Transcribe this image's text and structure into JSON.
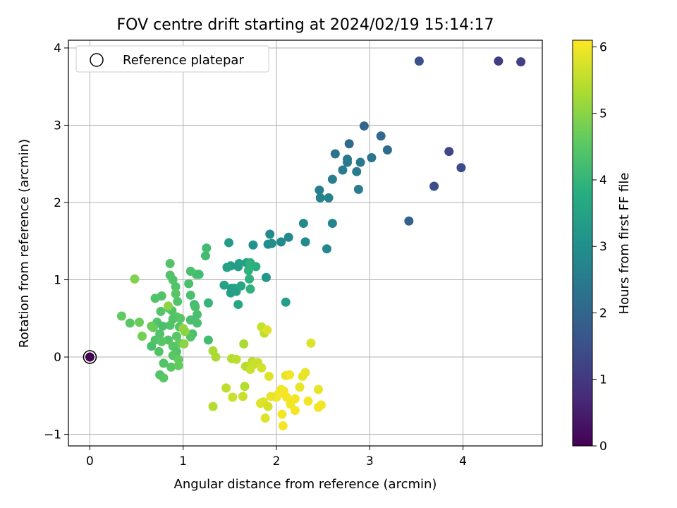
{
  "chart_data": {
    "type": "scatter",
    "title": "FOV centre drift starting at 2024/02/19 15:14:17",
    "xlabel": "Angular distance from reference (arcmin)",
    "ylabel": "Rotation from reference (arcmin)",
    "xlim": [
      -0.23,
      4.85
    ],
    "ylim": [
      -1.15,
      4.1
    ],
    "xticks": [
      0,
      1,
      2,
      3,
      4
    ],
    "yticks": [
      -1,
      0,
      1,
      2,
      3,
      4
    ],
    "grid": true,
    "legend": {
      "position": "top-left",
      "entries": [
        "Reference platepar"
      ]
    },
    "reference_point": {
      "x": 0,
      "y": 0,
      "hours": 0
    },
    "colorbar": {
      "label": "Hours from first FF file",
      "range": [
        0,
        6.1
      ],
      "ticks": [
        0,
        1,
        2,
        3,
        4,
        5,
        6
      ],
      "colormap": "viridis"
    },
    "points": [
      {
        "x": 4.38,
        "y": 3.83,
        "h": 1.1
      },
      {
        "x": 4.62,
        "y": 3.82,
        "h": 1.15
      },
      {
        "x": 3.53,
        "y": 3.83,
        "h": 1.5
      },
      {
        "x": 3.85,
        "y": 2.66,
        "h": 1.3
      },
      {
        "x": 3.98,
        "y": 2.45,
        "h": 1.4
      },
      {
        "x": 3.69,
        "y": 2.21,
        "h": 1.45
      },
      {
        "x": 3.42,
        "y": 1.76,
        "h": 1.9
      },
      {
        "x": 2.94,
        "y": 2.99,
        "h": 2.0
      },
      {
        "x": 3.12,
        "y": 2.86,
        "h": 2.05
      },
      {
        "x": 2.78,
        "y": 2.76,
        "h": 2.1
      },
      {
        "x": 3.19,
        "y": 2.68,
        "h": 2.15
      },
      {
        "x": 2.63,
        "y": 2.63,
        "h": 2.3
      },
      {
        "x": 3.02,
        "y": 2.58,
        "h": 2.35
      },
      {
        "x": 2.76,
        "y": 2.56,
        "h": 2.4
      },
      {
        "x": 2.76,
        "y": 2.52,
        "h": 2.45
      },
      {
        "x": 2.9,
        "y": 2.52,
        "h": 2.4
      },
      {
        "x": 2.71,
        "y": 2.42,
        "h": 2.5
      },
      {
        "x": 2.86,
        "y": 2.4,
        "h": 2.5
      },
      {
        "x": 2.6,
        "y": 2.3,
        "h": 2.6
      },
      {
        "x": 2.88,
        "y": 2.17,
        "h": 2.5
      },
      {
        "x": 2.46,
        "y": 2.16,
        "h": 2.6
      },
      {
        "x": 2.47,
        "y": 2.06,
        "h": 2.65
      },
      {
        "x": 2.56,
        "y": 2.06,
        "h": 2.7
      },
      {
        "x": 2.29,
        "y": 1.73,
        "h": 2.85
      },
      {
        "x": 2.6,
        "y": 1.73,
        "h": 2.75
      },
      {
        "x": 1.93,
        "y": 1.59,
        "h": 2.9
      },
      {
        "x": 2.13,
        "y": 1.55,
        "h": 2.85
      },
      {
        "x": 1.91,
        "y": 1.46,
        "h": 2.95
      },
      {
        "x": 1.95,
        "y": 1.47,
        "h": 3.0
      },
      {
        "x": 2.05,
        "y": 1.49,
        "h": 2.9
      },
      {
        "x": 2.31,
        "y": 1.49,
        "h": 2.9
      },
      {
        "x": 2.54,
        "y": 1.4,
        "h": 2.8
      },
      {
        "x": 1.49,
        "y": 1.48,
        "h": 3.3
      },
      {
        "x": 1.75,
        "y": 1.45,
        "h": 3.1
      },
      {
        "x": 1.51,
        "y": 1.18,
        "h": 3.3
      },
      {
        "x": 1.59,
        "y": 1.17,
        "h": 3.3
      },
      {
        "x": 1.6,
        "y": 1.21,
        "h": 3.4
      },
      {
        "x": 1.47,
        "y": 1.16,
        "h": 3.5
      },
      {
        "x": 1.68,
        "y": 1.22,
        "h": 3.5
      },
      {
        "x": 1.89,
        "y": 1.03,
        "h": 3.2
      },
      {
        "x": 1.44,
        "y": 0.93,
        "h": 3.5
      },
      {
        "x": 1.52,
        "y": 0.89,
        "h": 3.4
      },
      {
        "x": 1.55,
        "y": 0.89,
        "h": 3.5
      },
      {
        "x": 1.51,
        "y": 0.83,
        "h": 3.4
      },
      {
        "x": 1.57,
        "y": 0.85,
        "h": 3.5
      },
      {
        "x": 1.62,
        "y": 0.92,
        "h": 3.6
      },
      {
        "x": 1.59,
        "y": 0.68,
        "h": 3.6
      },
      {
        "x": 2.1,
        "y": 0.71,
        "h": 3.4
      },
      {
        "x": 1.7,
        "y": 1.12,
        "h": 3.9
      },
      {
        "x": 1.72,
        "y": 1.22,
        "h": 3.9
      },
      {
        "x": 1.71,
        "y": 1.01,
        "h": 3.9
      },
      {
        "x": 1.72,
        "y": 0.88,
        "h": 3.9
      },
      {
        "x": 1.78,
        "y": 1.17,
        "h": 3.8
      },
      {
        "x": 1.25,
        "y": 1.41,
        "h": 4.2
      },
      {
        "x": 1.24,
        "y": 1.31,
        "h": 4.2
      },
      {
        "x": 1.08,
        "y": 1.11,
        "h": 4.3
      },
      {
        "x": 1.14,
        "y": 1.07,
        "h": 4.3
      },
      {
        "x": 1.17,
        "y": 1.07,
        "h": 4.2
      },
      {
        "x": 0.86,
        "y": 1.21,
        "h": 4.4
      },
      {
        "x": 0.86,
        "y": 1.06,
        "h": 4.4
      },
      {
        "x": 0.89,
        "y": 1.0,
        "h": 4.4
      },
      {
        "x": 1.06,
        "y": 0.95,
        "h": 4.3
      },
      {
        "x": 0.92,
        "y": 0.91,
        "h": 4.4
      },
      {
        "x": 0.92,
        "y": 0.82,
        "h": 4.5
      },
      {
        "x": 1.08,
        "y": 0.8,
        "h": 4.3
      },
      {
        "x": 0.77,
        "y": 0.79,
        "h": 4.4
      },
      {
        "x": 0.7,
        "y": 0.76,
        "h": 4.4
      },
      {
        "x": 0.94,
        "y": 0.72,
        "h": 4.4
      },
      {
        "x": 1.12,
        "y": 0.68,
        "h": 4.2
      },
      {
        "x": 1.13,
        "y": 0.65,
        "h": 4.3
      },
      {
        "x": 1.27,
        "y": 0.7,
        "h": 4.0
      },
      {
        "x": 0.85,
        "y": 0.63,
        "h": 4.3
      },
      {
        "x": 0.88,
        "y": 0.6,
        "h": 4.4
      },
      {
        "x": 0.76,
        "y": 0.59,
        "h": 4.4
      },
      {
        "x": 1.15,
        "y": 0.55,
        "h": 4.3
      },
      {
        "x": 0.93,
        "y": 0.52,
        "h": 4.5
      },
      {
        "x": 0.97,
        "y": 0.5,
        "h": 4.5
      },
      {
        "x": 0.89,
        "y": 0.49,
        "h": 4.4
      },
      {
        "x": 1.08,
        "y": 0.48,
        "h": 4.3
      },
      {
        "x": 1.15,
        "y": 0.44,
        "h": 4.3
      },
      {
        "x": 0.72,
        "y": 0.45,
        "h": 4.4
      },
      {
        "x": 0.86,
        "y": 0.41,
        "h": 4.4
      },
      {
        "x": 0.96,
        "y": 0.39,
        "h": 4.4
      },
      {
        "x": 0.78,
        "y": 0.4,
        "h": 4.3
      },
      {
        "x": 0.68,
        "y": 0.38,
        "h": 4.6
      },
      {
        "x": 0.66,
        "y": 0.4,
        "h": 4.7
      },
      {
        "x": 0.75,
        "y": 0.3,
        "h": 4.4
      },
      {
        "x": 1.1,
        "y": 0.3,
        "h": 4.3
      },
      {
        "x": 1.08,
        "y": 0.26,
        "h": 4.4
      },
      {
        "x": 0.93,
        "y": 0.27,
        "h": 4.5
      },
      {
        "x": 0.84,
        "y": 0.22,
        "h": 4.4
      },
      {
        "x": 0.7,
        "y": 0.22,
        "h": 4.4
      },
      {
        "x": 0.77,
        "y": 0.2,
        "h": 4.5
      },
      {
        "x": 0.96,
        "y": 0.18,
        "h": 4.6
      },
      {
        "x": 1.27,
        "y": 0.22,
        "h": 4.2
      },
      {
        "x": 0.66,
        "y": 0.14,
        "h": 4.3
      },
      {
        "x": 0.89,
        "y": 0.14,
        "h": 4.5
      },
      {
        "x": 0.74,
        "y": 0.07,
        "h": 4.4
      },
      {
        "x": 0.93,
        "y": 0.07,
        "h": 4.4
      },
      {
        "x": 0.89,
        "y": 0.02,
        "h": 4.5
      },
      {
        "x": 0.95,
        "y": -0.03,
        "h": 4.6
      },
      {
        "x": 0.79,
        "y": -0.08,
        "h": 4.4
      },
      {
        "x": 0.87,
        "y": -0.13,
        "h": 4.5
      },
      {
        "x": 0.95,
        "y": -0.11,
        "h": 4.6
      },
      {
        "x": 0.75,
        "y": -0.23,
        "h": 4.4
      },
      {
        "x": 0.79,
        "y": -0.27,
        "h": 4.5
      },
      {
        "x": 0.34,
        "y": 0.53,
        "h": 4.6
      },
      {
        "x": 0.43,
        "y": 0.44,
        "h": 4.5
      },
      {
        "x": 0.53,
        "y": 0.45,
        "h": 4.7
      },
      {
        "x": 0.56,
        "y": 0.27,
        "h": 4.8
      },
      {
        "x": 0.48,
        "y": 1.01,
        "h": 4.9
      },
      {
        "x": 0.84,
        "y": 0.66,
        "h": 5.0
      },
      {
        "x": 1.0,
        "y": 0.37,
        "h": 5.1
      },
      {
        "x": 1.02,
        "y": 0.33,
        "h": 5.0
      },
      {
        "x": 1.01,
        "y": 0.17,
        "h": 5.0
      },
      {
        "x": 1.32,
        "y": 0.08,
        "h": 5.3
      },
      {
        "x": 1.35,
        "y": 0.0,
        "h": 5.3
      },
      {
        "x": 1.65,
        "y": 0.17,
        "h": 5.3
      },
      {
        "x": 1.52,
        "y": -0.02,
        "h": 5.4
      },
      {
        "x": 1.57,
        "y": -0.03,
        "h": 5.5
      },
      {
        "x": 1.67,
        "y": -0.12,
        "h": 5.4
      },
      {
        "x": 1.74,
        "y": -0.06,
        "h": 5.5
      },
      {
        "x": 1.72,
        "y": -0.16,
        "h": 5.6
      },
      {
        "x": 1.8,
        "y": -0.07,
        "h": 5.6
      },
      {
        "x": 1.75,
        "y": -0.1,
        "h": 5.6
      },
      {
        "x": 1.84,
        "y": -0.14,
        "h": 5.7
      },
      {
        "x": 1.87,
        "y": 0.31,
        "h": 5.5
      },
      {
        "x": 1.84,
        "y": 0.39,
        "h": 5.6
      },
      {
        "x": 1.9,
        "y": 0.35,
        "h": 5.8
      },
      {
        "x": 2.37,
        "y": 0.18,
        "h": 5.8
      },
      {
        "x": 1.46,
        "y": -0.4,
        "h": 5.5
      },
      {
        "x": 1.66,
        "y": -0.38,
        "h": 5.4
      },
      {
        "x": 1.53,
        "y": -0.52,
        "h": 5.6
      },
      {
        "x": 1.64,
        "y": -0.51,
        "h": 5.6
      },
      {
        "x": 1.32,
        "y": -0.64,
        "h": 5.4
      },
      {
        "x": 1.92,
        "y": -0.25,
        "h": 5.8
      },
      {
        "x": 2.1,
        "y": -0.24,
        "h": 5.9
      },
      {
        "x": 2.14,
        "y": -0.23,
        "h": 6.0
      },
      {
        "x": 2.31,
        "y": -0.2,
        "h": 5.9
      },
      {
        "x": 2.28,
        "y": -0.25,
        "h": 5.9
      },
      {
        "x": 2.25,
        "y": -0.39,
        "h": 5.9
      },
      {
        "x": 2.45,
        "y": -0.42,
        "h": 5.9
      },
      {
        "x": 2.05,
        "y": -0.42,
        "h": 6.0
      },
      {
        "x": 2.08,
        "y": -0.44,
        "h": 6.0
      },
      {
        "x": 2.02,
        "y": -0.48,
        "h": 6.0
      },
      {
        "x": 2.11,
        "y": -0.52,
        "h": 6.0
      },
      {
        "x": 2.0,
        "y": -0.52,
        "h": 6.0
      },
      {
        "x": 1.94,
        "y": -0.51,
        "h": 5.9
      },
      {
        "x": 2.2,
        "y": -0.54,
        "h": 6.0
      },
      {
        "x": 2.34,
        "y": -0.57,
        "h": 6.0
      },
      {
        "x": 1.84,
        "y": -0.59,
        "h": 5.8
      },
      {
        "x": 1.86,
        "y": -0.58,
        "h": 5.8
      },
      {
        "x": 1.83,
        "y": -0.6,
        "h": 5.8
      },
      {
        "x": 1.91,
        "y": -0.64,
        "h": 5.7
      },
      {
        "x": 2.15,
        "y": -0.61,
        "h": 6.0
      },
      {
        "x": 2.48,
        "y": -0.62,
        "h": 6.0
      },
      {
        "x": 2.45,
        "y": -0.65,
        "h": 6.0
      },
      {
        "x": 2.2,
        "y": -0.69,
        "h": 6.0
      },
      {
        "x": 2.06,
        "y": -0.74,
        "h": 6.0
      },
      {
        "x": 1.88,
        "y": -0.79,
        "h": 5.8
      },
      {
        "x": 2.07,
        "y": -0.89,
        "h": 6.0
      }
    ]
  }
}
